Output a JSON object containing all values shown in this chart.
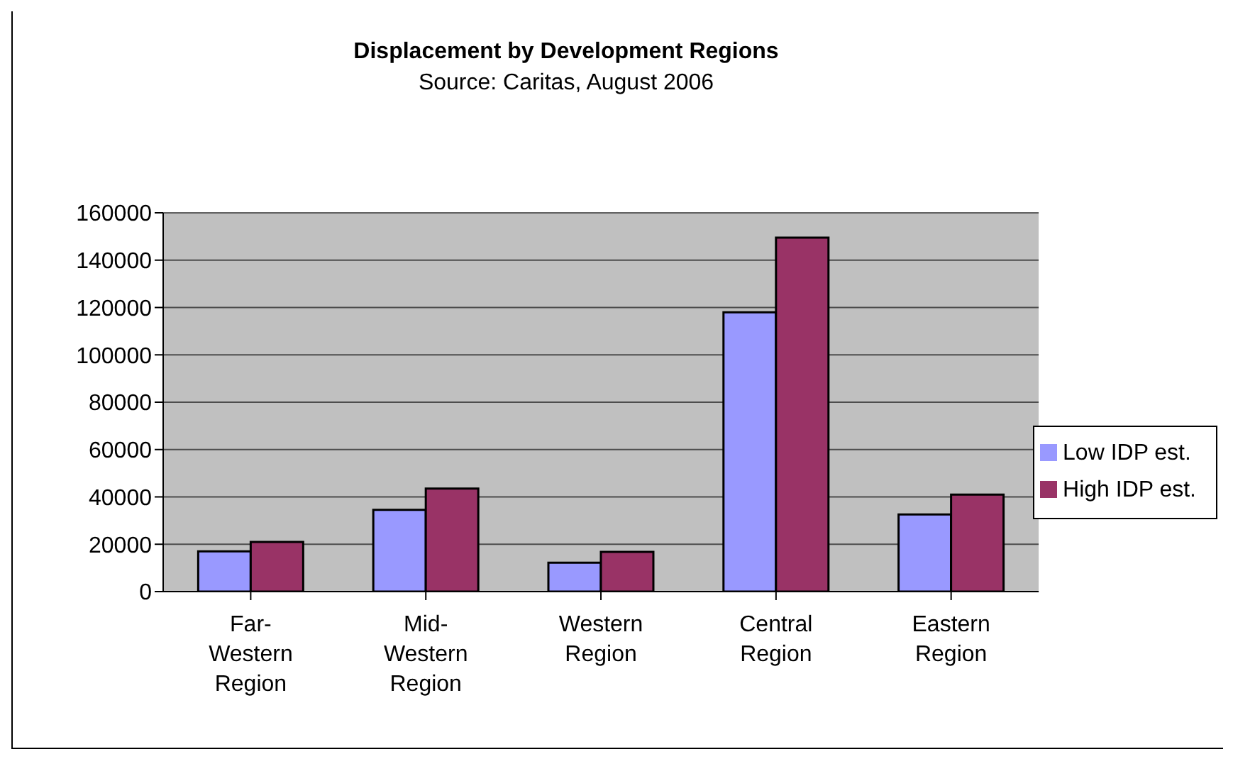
{
  "chart_data": {
    "type": "bar",
    "title": "Displacement by Development Regions",
    "subtitle": "Source: Caritas, August 2006",
    "categories": [
      "Far-Western Region",
      "Mid-Western Region",
      "Western Region",
      "Central Region",
      "Eastern Region"
    ],
    "series": [
      {
        "name": "Low  IDP est.",
        "color": "#9999ff",
        "values": [
          17000,
          34500,
          12200,
          118000,
          32600
        ]
      },
      {
        "name": "High IDP est.",
        "color": "#993366",
        "values": [
          21000,
          43500,
          16800,
          149500,
          41000
        ]
      }
    ],
    "ylim": [
      0,
      160000
    ],
    "yticks": [
      0,
      20000,
      40000,
      60000,
      80000,
      100000,
      120000,
      140000,
      160000
    ],
    "grid": "y",
    "legend": "right"
  }
}
